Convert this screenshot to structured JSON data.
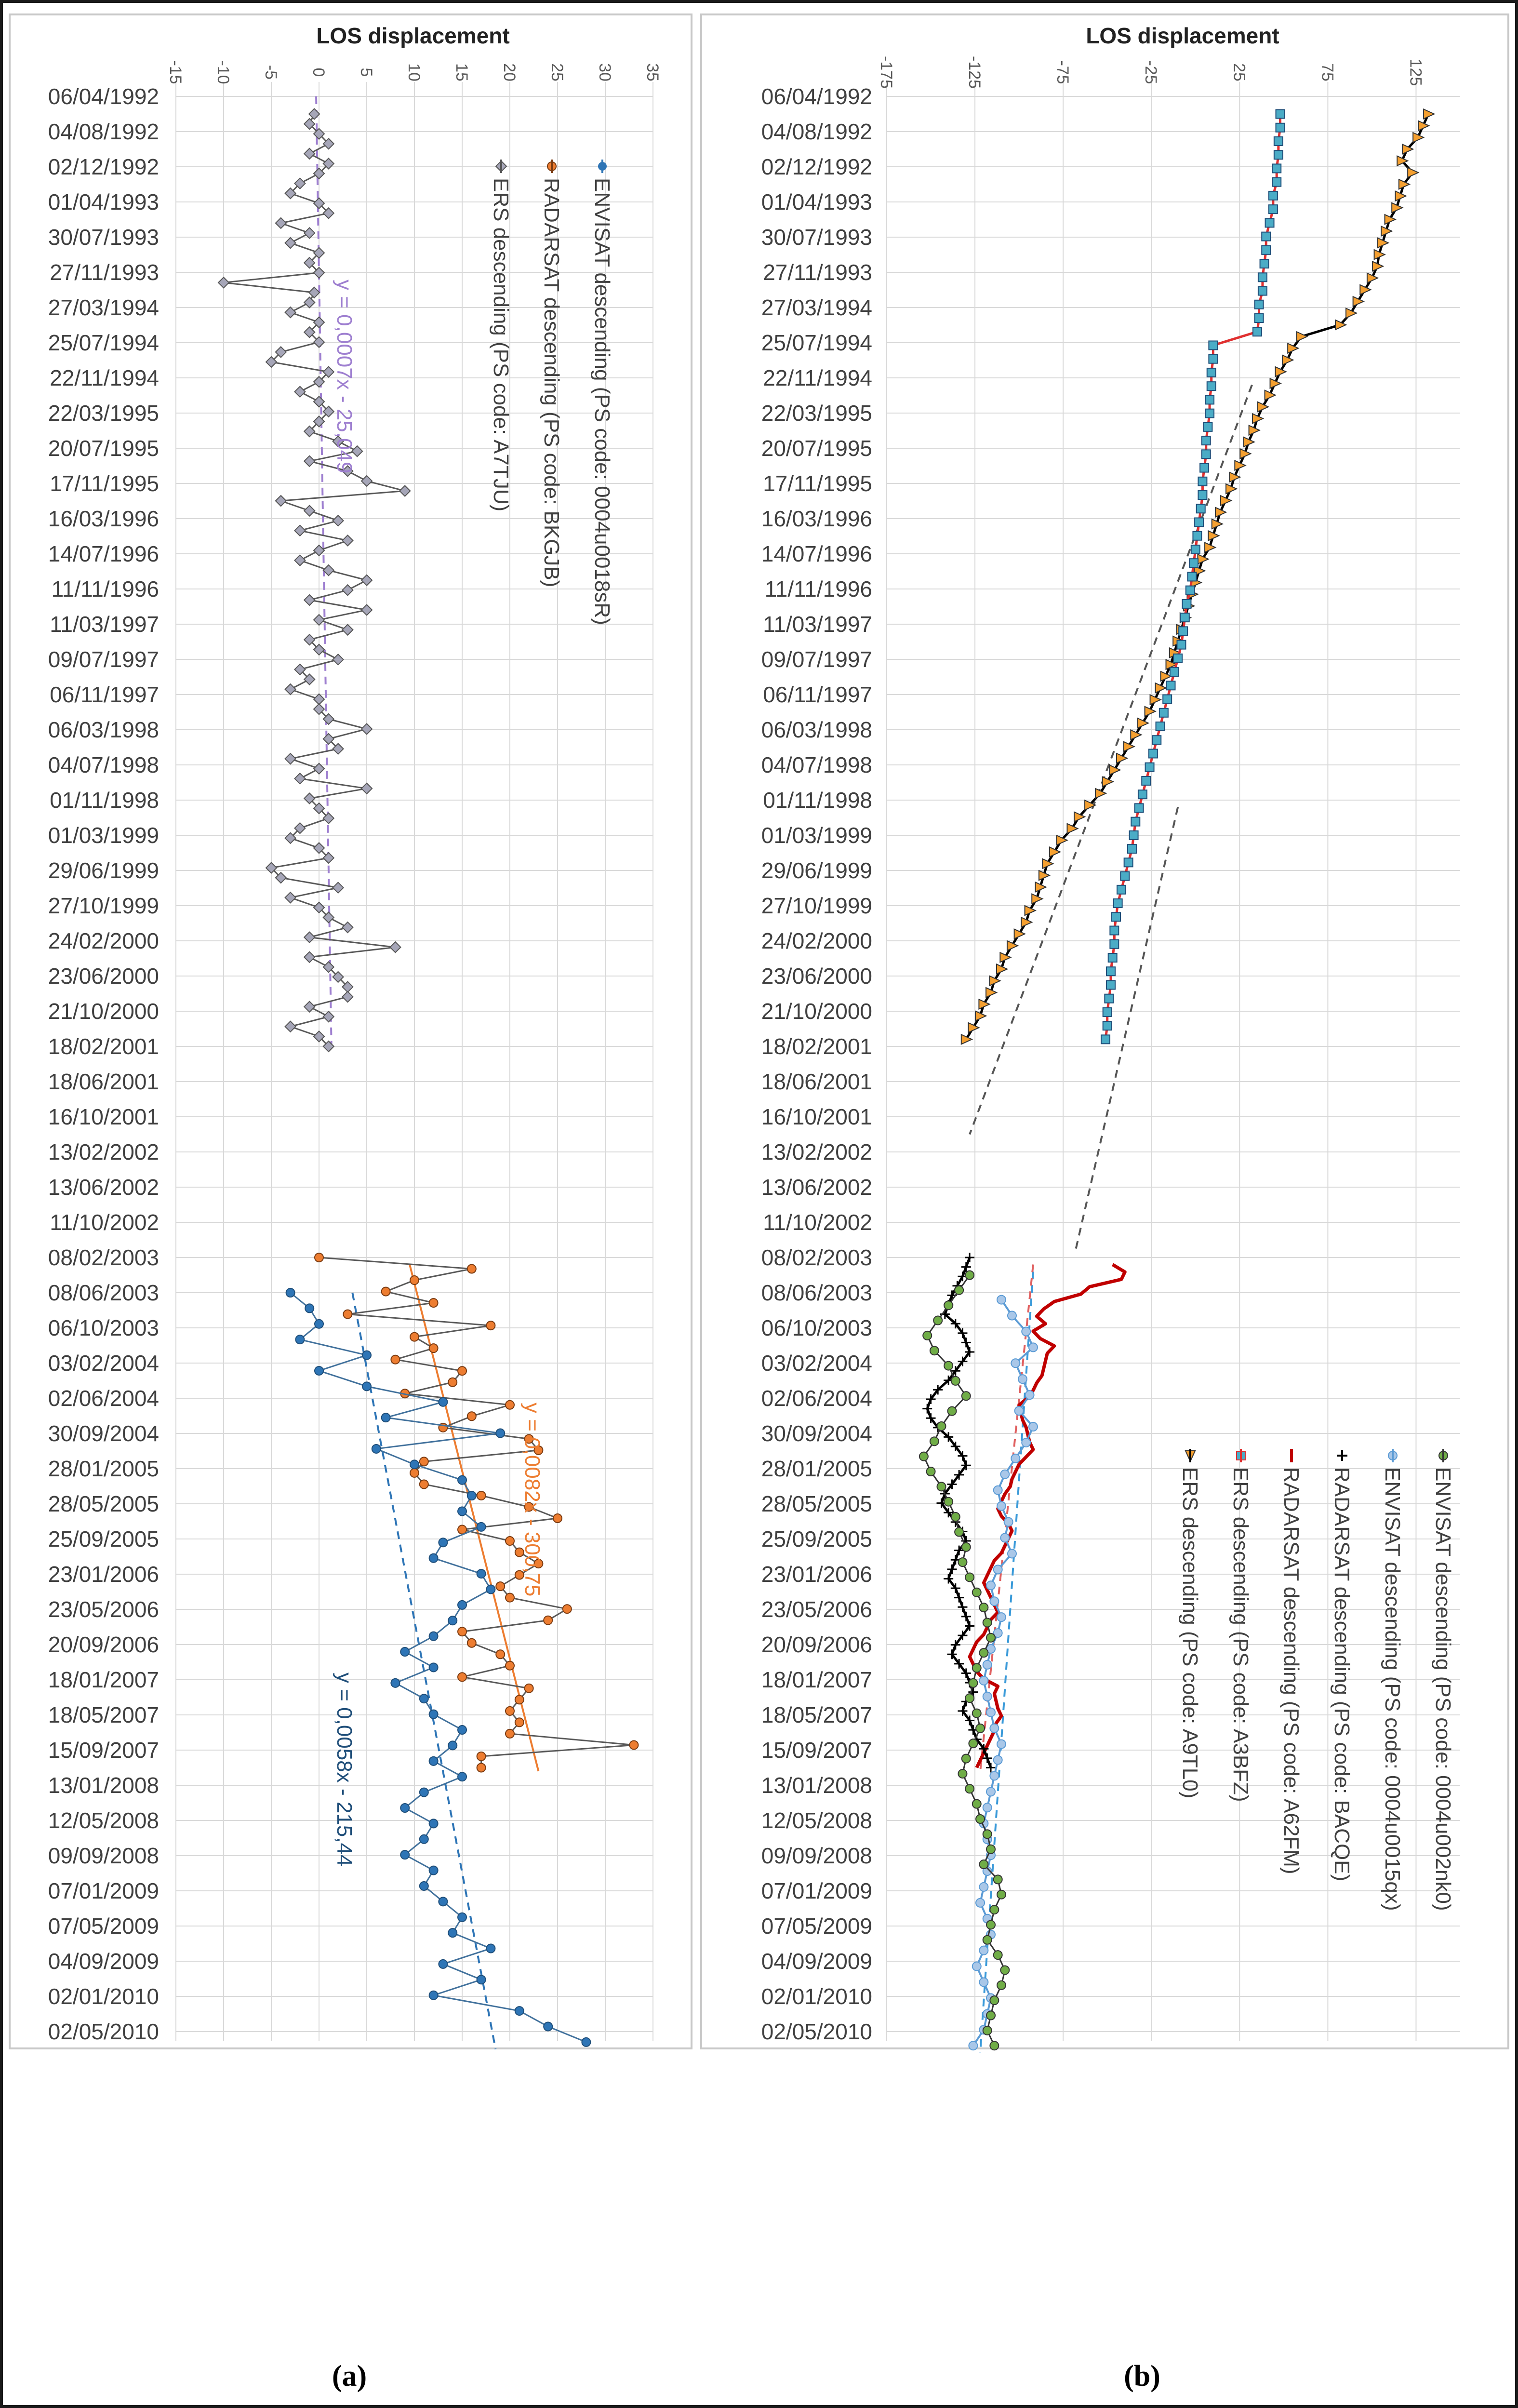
{
  "colors": {
    "ers_a": "#595959",
    "ers_a_marker": "#a6a6b8",
    "radarsat_a": "#ed7d31",
    "envisat_a": "#2e75b6",
    "trend_ers_a": "#9e7fd0",
    "trend_radarsat_a": "#ed7d31",
    "trend_envisat_a": "#2e75b6",
    "ers_b_marker": "#f5a030",
    "ers_b_line": "#000000",
    "ers_sq_fill": "#4bacc6",
    "ers_sq_line": "#e03030",
    "radarsat_b": "#c00000",
    "radarsat_b2": "#000000",
    "envisat_b1": "#5b9bd5",
    "envisat_b2": "#70ad47"
  },
  "dates": [
    "06/04/1992",
    "04/08/1992",
    "02/12/1992",
    "01/04/1993",
    "30/07/1993",
    "27/11/1993",
    "27/03/1994",
    "25/07/1994",
    "22/11/1994",
    "22/03/1995",
    "20/07/1995",
    "17/11/1995",
    "16/03/1996",
    "14/07/1996",
    "11/11/1996",
    "11/03/1997",
    "09/07/1997",
    "06/11/1997",
    "06/03/1998",
    "04/07/1998",
    "01/11/1998",
    "01/03/1999",
    "29/06/1999",
    "27/10/1999",
    "24/02/2000",
    "23/06/2000",
    "21/10/2000",
    "18/02/2001",
    "18/06/2001",
    "16/10/2001",
    "13/02/2002",
    "13/06/2002",
    "11/10/2002",
    "08/02/2003",
    "08/06/2003",
    "06/10/2003",
    "03/02/2004",
    "02/06/2004",
    "30/09/2004",
    "28/01/2005",
    "28/05/2005",
    "25/09/2005",
    "23/01/2006",
    "23/05/2006",
    "20/09/2006",
    "18/01/2007",
    "18/05/2007",
    "15/09/2007",
    "13/01/2008",
    "12/05/2008",
    "09/09/2008",
    "07/01/2009",
    "07/05/2009",
    "04/09/2009",
    "02/01/2010",
    "02/05/2010"
  ],
  "chart_data": [
    {
      "type": "line",
      "panel_label": "(a)",
      "title": "LOS displacement",
      "x_ticks": [
        -15,
        -10,
        -5,
        0,
        5,
        10,
        15,
        20,
        25,
        30,
        35
      ],
      "xlim": [
        -15,
        35
      ],
      "legend": [
        {
          "name": "ENVISAT descending (PS code: 0004u0018sR)",
          "color": "#2e75b6",
          "marker": "circle"
        },
        {
          "name": "RADARSAT descending (PS code: BKGJB)",
          "color": "#ed7d31",
          "marker": "circle"
        },
        {
          "name": "ERS descending (PS code: A7TJU)",
          "color": "#a6a6b8",
          "marker": "diamond"
        }
      ],
      "series": [
        {
          "name": "ERS descending (PS code: A7TJU)",
          "start": 0.5,
          "end": 27.0,
          "values": [
            -0.5,
            -1,
            0,
            1,
            -1,
            1,
            0,
            -2,
            -3,
            0,
            1,
            -4,
            -1,
            -3,
            0,
            -1,
            0,
            -10,
            -0.5,
            -1,
            -3,
            0,
            -1,
            0,
            -4,
            -5,
            1,
            0,
            -2,
            0,
            1,
            0,
            -1,
            2,
            4,
            -1,
            3,
            5,
            9,
            -4,
            -1,
            2,
            -2,
            3,
            0,
            -2,
            1,
            5,
            3,
            -1,
            5,
            0,
            3,
            -1,
            0,
            2,
            -2,
            -1,
            -3,
            0,
            0,
            1,
            5,
            1,
            2,
            -3,
            0,
            -2,
            5,
            -1,
            0,
            1,
            -2,
            -3,
            0,
            1,
            -5,
            -4,
            2,
            -3,
            0,
            1,
            3,
            -1,
            8,
            -1,
            1,
            2,
            3,
            3,
            -1,
            1,
            -3,
            0,
            1
          ]
        },
        {
          "name": "RADARSAT descending (PS code: BKGJB)",
          "start": 33.0,
          "end": 47.5,
          "values": [
            0,
            16,
            10,
            7,
            12,
            3,
            18,
            10,
            12,
            8,
            15,
            14,
            9,
            20,
            16,
            13,
            22,
            23,
            11,
            10,
            11,
            17,
            22,
            25,
            15,
            20,
            21,
            23,
            21,
            19,
            20,
            26,
            24,
            15,
            16,
            19,
            20,
            15,
            22,
            21,
            20,
            21,
            20,
            33,
            17,
            17
          ]
        },
        {
          "name": "ENVISAT descending (PS code: 0004u0018sR)",
          "start": 34.0,
          "end": 55.3,
          "values": [
            -3,
            -1,
            0,
            -2,
            5,
            0,
            5,
            13,
            7,
            19,
            6,
            10,
            15,
            16,
            15,
            17,
            13,
            12,
            17,
            18,
            15,
            14,
            12,
            9,
            12,
            8,
            11,
            12,
            15,
            14,
            12,
            15,
            11,
            9,
            12,
            11,
            9,
            12,
            11,
            13,
            15,
            14,
            18,
            13,
            17,
            12,
            21,
            24,
            28
          ]
        }
      ],
      "trendlines": [
        {
          "label": "y = 0,0007x - 25,049",
          "color": "#9e7fd0",
          "x0": -0.3,
          "y0": 0.0,
          "x1": 1.3,
          "y1": 27.0
        },
        {
          "label": "y = 0,0082x - 300,75",
          "color": "#ed7d31",
          "x0": 9.5,
          "y0": 33.2,
          "x1": 23.0,
          "y1": 47.6
        },
        {
          "label": "y = 0,0058x - 215,44",
          "color": "#2e75b6",
          "x0": 3.5,
          "y0": 34.0,
          "x1": 18.5,
          "y1": 55.5
        }
      ],
      "annotations": [
        "y = 0,0007x - 25,049",
        "y = 0,0082x - 300,75",
        "y = 0,0058x - 215,44"
      ]
    },
    {
      "type": "line",
      "panel_label": "(b)",
      "title": "LOS displacement",
      "x_ticks": [
        -175,
        -125,
        -75,
        -25,
        25,
        75,
        125
      ],
      "xlim": [
        -175,
        150
      ],
      "legend": [
        {
          "name": "ENVISAT descending (PS code: 0004u002nk0)",
          "color": "#70ad47",
          "marker": "circle"
        },
        {
          "name": "ENVISAT descending (PS code: 0004u0015qx)",
          "color": "#5b9bd5",
          "marker": "circle"
        },
        {
          "name": "RADARSAT descending (PS code: BACQE)",
          "color": "#000000",
          "marker": "plus"
        },
        {
          "name": "RADARSAT descending (PS code: A62FM)",
          "color": "#c00000",
          "marker": "none"
        },
        {
          "name": "ERS descending (PS code: A3BFZ)",
          "color": "#4bacc6",
          "marker": "square"
        },
        {
          "name": "ERS descending (PS code: A9TL0)",
          "color": "#f5a030",
          "marker": "triangle"
        }
      ],
      "series": [
        {
          "name": "ERS descending (PS code: A9TL0)",
          "start": 0.5,
          "end": 26.8,
          "values": [
            132,
            129,
            126,
            120,
            117,
            123,
            118,
            116,
            114,
            110,
            108,
            106,
            104,
            103,
            100,
            96,
            92,
            88,
            82,
            60,
            55,
            52,
            48,
            45,
            42,
            38,
            35,
            33,
            30,
            28,
            25,
            22,
            20,
            17,
            14,
            12,
            10,
            8,
            4,
            2,
            0,
            -2,
            -4,
            -6,
            -8,
            -10,
            -12,
            -14,
            -17,
            -20,
            -23,
            -26,
            -30,
            -34,
            -38,
            -42,
            -46,
            -50,
            -54,
            -60,
            -66,
            -70,
            -76,
            -80,
            -84,
            -86,
            -88,
            -90,
            -94,
            -96,
            -100,
            -104,
            -108,
            -110,
            -114,
            -116,
            -120,
            -122,
            -126,
            -130
          ]
        },
        {
          "name": "ERS descending (PS code: A3BFZ)",
          "start": 0.5,
          "end": 26.8,
          "values": [
            48,
            48,
            47,
            47,
            46,
            46,
            44,
            44,
            42,
            40,
            40,
            39,
            38,
            38,
            36,
            36,
            35,
            10,
            10,
            9,
            9,
            8,
            8,
            7,
            6,
            6,
            5,
            4,
            4,
            3,
            2,
            1,
            0,
            -1,
            -2,
            -3,
            -5,
            -6,
            -7,
            -8,
            -10,
            -12,
            -14,
            -16,
            -18,
            -20,
            -22,
            -24,
            -26,
            -28,
            -30,
            -32,
            -34,
            -35,
            -36,
            -38,
            -40,
            -42,
            -44,
            -45,
            -46,
            -46,
            -47,
            -48,
            -48,
            -49,
            -50,
            -50,
            -51
          ]
        },
        {
          "name": "RADARSAT descending (PS code: A62FM)",
          "start": 33.2,
          "end": 47.5,
          "values": [
            -47,
            -40,
            -42,
            -60,
            -65,
            -80,
            -86,
            -90,
            -85,
            -92,
            -88,
            -80,
            -84,
            -85,
            -86,
            -87,
            -90,
            -92,
            -95,
            -100,
            -99,
            -98,
            -96,
            -95,
            -94,
            -92,
            -96,
            -100,
            -102,
            -104,
            -105,
            -108,
            -110,
            -112,
            -110,
            -106,
            -104,
            -106,
            -108,
            -110,
            -114,
            -116,
            -118,
            -120,
            -118,
            -116,
            -114,
            -112,
            -116,
            -118,
            -120,
            -124,
            -126,
            -128,
            -126,
            -124,
            -120,
            -112,
            -114,
            -113,
            -112,
            -110,
            -113,
            -114,
            -116,
            -118,
            -120,
            -122,
            -124
          ]
        },
        {
          "name": "RADARSAT descending (PS code: BACQE)",
          "start": 33.0,
          "end": 47.5,
          "values": [
            -128,
            -130,
            -132,
            -135,
            -138,
            -140,
            -142,
            -136,
            -132,
            -130,
            -128,
            -132,
            -136,
            -140,
            -146,
            -150,
            -152,
            -150,
            -146,
            -140,
            -136,
            -132,
            -130,
            -134,
            -138,
            -142,
            -144,
            -140,
            -136,
            -132,
            -130,
            -134,
            -136,
            -138,
            -140,
            -136,
            -134,
            -132,
            -130,
            -128,
            -132,
            -136,
            -138,
            -134,
            -130,
            -128,
            -126,
            -130,
            -132,
            -128,
            -126,
            -124,
            -120,
            -118,
            -116
          ]
        },
        {
          "name": "ENVISAT descending (PS code: 0004u0015qx)",
          "start": 34.2,
          "end": 55.4,
          "values": [
            -110,
            -104,
            -96,
            -92,
            -102,
            -98,
            -94,
            -100,
            -92,
            -96,
            -102,
            -108,
            -112,
            -110,
            -106,
            -108,
            -104,
            -112,
            -116,
            -114,
            -110,
            -112,
            -116,
            -118,
            -120,
            -118,
            -116,
            -114,
            -110,
            -112,
            -114,
            -116,
            -118,
            -120,
            -118,
            -116,
            -118,
            -120,
            -122,
            -118,
            -116,
            -120,
            -124,
            -120,
            -116,
            -118,
            -120,
            -126
          ]
        },
        {
          "name": "ENVISAT descending (PS code: 0004u002nk0)",
          "start": 33.5,
          "end": 55.4,
          "values": [
            -128,
            -134,
            -140,
            -146,
            -152,
            -148,
            -140,
            -136,
            -130,
            -138,
            -144,
            -148,
            -154,
            -150,
            -144,
            -140,
            -136,
            -134,
            -130,
            -132,
            -128,
            -124,
            -120,
            -118,
            -116,
            -120,
            -124,
            -126,
            -128,
            -124,
            -122,
            -126,
            -130,
            -132,
            -128,
            -124,
            -122,
            -118,
            -116,
            -120,
            -112,
            -110,
            -114,
            -116,
            -118,
            -112,
            -108,
            -110,
            -114,
            -116,
            -118,
            -114
          ]
        }
      ],
      "trendlines": [
        {
          "color": "#555555",
          "x0": 32,
          "y0": 8.2,
          "x1": -128,
          "y1": 29.5
        },
        {
          "color": "#555555",
          "x0": -10,
          "y0": 20.2,
          "x1": -68,
          "y1": 32.8
        },
        {
          "color": "#3a9ad9",
          "x0": -92,
          "y0": 33.4,
          "x1": -122,
          "y1": 55.6
        },
        {
          "color": "#e06060",
          "x0": -92,
          "y0": 33.2,
          "x1": -122,
          "y1": 47.6
        }
      ]
    }
  ]
}
